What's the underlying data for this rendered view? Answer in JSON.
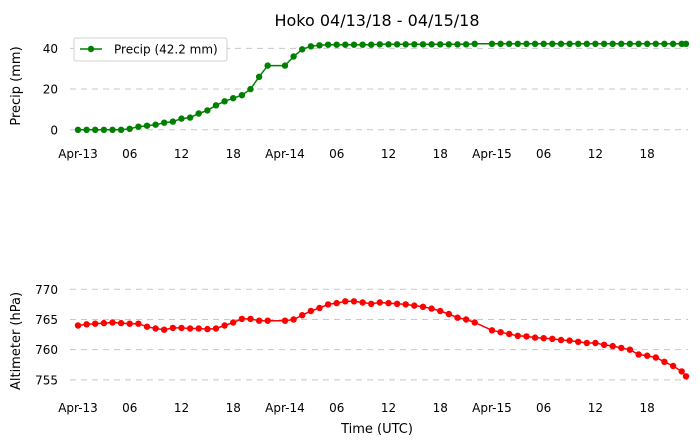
{
  "chart_data": [
    {
      "type": "line",
      "title": "Hoko 04/13/18 - 04/15/18",
      "xlabel": "",
      "ylabel": "Precip (mm)",
      "color": "#008000",
      "ylim": [
        -6,
        49
      ],
      "yticks": [
        0,
        20,
        40
      ],
      "grid": true,
      "legend": "upper-left",
      "x_tick_labels": [
        "Apr-13",
        "06",
        "12",
        "18",
        "Apr-14",
        "06",
        "12",
        "18",
        "Apr-15",
        "06",
        "12",
        "18"
      ],
      "x_tick_hours": [
        0,
        6,
        12,
        18,
        24,
        30,
        36,
        42,
        48,
        54,
        60,
        66
      ],
      "xlim_hours": [
        0,
        70.5
      ],
      "series": [
        {
          "name": "Precip (42.2 mm)",
          "x_hours": [
            0,
            1,
            2,
            3,
            4,
            5,
            6,
            7,
            8,
            9,
            10,
            11,
            12,
            13,
            14,
            15,
            16,
            17,
            18,
            19,
            20,
            21,
            22,
            24,
            25,
            26,
            27,
            28,
            29,
            30,
            31,
            32,
            33,
            34,
            35,
            36,
            37,
            38,
            39,
            40,
            41,
            42,
            43,
            44,
            45,
            46,
            48,
            49,
            50,
            51,
            52,
            53,
            54,
            55,
            56,
            57,
            58,
            59,
            60,
            61,
            62,
            63,
            64,
            65,
            66,
            67,
            68,
            69,
            70,
            70.5
          ],
          "values": [
            0,
            0,
            0,
            0,
            0,
            0,
            0.5,
            1.5,
            2,
            2.5,
            3.5,
            4,
            5.5,
            6,
            8,
            9.5,
            12,
            14,
            15.5,
            17,
            20,
            26,
            31.5,
            31.5,
            36,
            39.5,
            41,
            41.5,
            41.8,
            41.8,
            41.8,
            41.8,
            41.8,
            41.8,
            42,
            42,
            42,
            42,
            42,
            42,
            42,
            42,
            42,
            42,
            42,
            42.2,
            42.2,
            42.2,
            42.2,
            42.2,
            42.2,
            42.2,
            42.2,
            42.2,
            42.2,
            42.2,
            42.2,
            42.2,
            42.2,
            42.2,
            42.2,
            42.2,
            42.2,
            42.2,
            42.2,
            42.2,
            42.2,
            42.2,
            42.2,
            42.2
          ]
        }
      ]
    },
    {
      "type": "line",
      "title": "",
      "xlabel": "Time (UTC)",
      "ylabel": "Altimeter (hPa)",
      "color": "#ff0000",
      "ylim": [
        752.5,
        771.2
      ],
      "yticks": [
        755,
        760,
        765,
        770
      ],
      "grid": true,
      "x_tick_labels": [
        "Apr-13",
        "06",
        "12",
        "18",
        "Apr-14",
        "06",
        "12",
        "18",
        "Apr-15",
        "06",
        "12",
        "18"
      ],
      "x_tick_hours": [
        0,
        6,
        12,
        18,
        24,
        30,
        36,
        42,
        48,
        54,
        60,
        66
      ],
      "xlim_hours": [
        0,
        70.5
      ],
      "series": [
        {
          "x_hours": [
            0,
            1,
            2,
            3,
            4,
            5,
            6,
            7,
            8,
            9,
            10,
            11,
            12,
            13,
            14,
            15,
            16,
            17,
            18,
            19,
            20,
            21,
            22,
            24,
            25,
            26,
            27,
            28,
            29,
            30,
            31,
            32,
            33,
            34,
            35,
            36,
            37,
            38,
            39,
            40,
            41,
            42,
            43,
            44,
            45,
            46,
            48,
            49,
            50,
            51,
            52,
            53,
            54,
            55,
            56,
            57,
            58,
            59,
            60,
            61,
            62,
            63,
            64,
            65,
            66,
            67,
            68,
            69,
            70,
            70.5
          ],
          "values": [
            764.0,
            764.2,
            764.3,
            764.4,
            764.5,
            764.4,
            764.3,
            764.3,
            763.8,
            763.5,
            763.3,
            763.6,
            763.6,
            763.5,
            763.5,
            763.4,
            763.5,
            764.0,
            764.5,
            765.1,
            765.1,
            764.8,
            764.8,
            764.8,
            765.0,
            765.7,
            766.4,
            766.9,
            767.5,
            767.7,
            768.0,
            768.0,
            767.8,
            767.6,
            767.8,
            767.7,
            767.6,
            767.5,
            767.3,
            767.1,
            766.8,
            766.4,
            765.9,
            765.3,
            765.0,
            764.5,
            763.2,
            762.9,
            762.6,
            762.3,
            762.2,
            762.0,
            761.9,
            761.8,
            761.6,
            761.5,
            761.3,
            761.1,
            761.1,
            760.8,
            760.6,
            760.3,
            760.0,
            759.2,
            759.0,
            758.7,
            758.0,
            757.3,
            756.4,
            755.6
          ]
        }
      ]
    }
  ]
}
